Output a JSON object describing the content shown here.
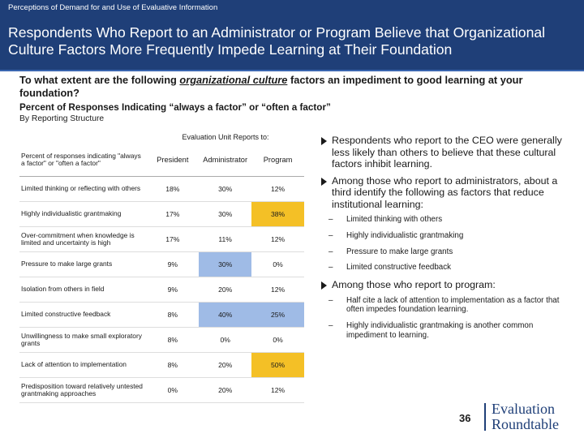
{
  "header": {
    "kicker": "Perceptions of Demand for and Use of Evaluative Information",
    "title": "Respondents Who Report to an Administrator or Program Believe that Organizational Culture Factors More Frequently Impede Learning at Their Foundation"
  },
  "question": {
    "pre": "To what extent are the following ",
    "emph": "organizational culture",
    "post": " factors an impediment to good learning at your foundation?"
  },
  "subtitle": "Percent of Responses Indicating “always a factor” or “often a factor”",
  "subtitle2": "By Reporting Structure",
  "table": {
    "group_header": "Evaluation Unit Reports to:",
    "row_header": "Percent of responses indicating \"always a factor\" or \"often a factor\"",
    "columns": [
      "President",
      "Administrator",
      "Program"
    ],
    "rows": [
      {
        "label": "Limited thinking or reflecting with others",
        "values": [
          "18%",
          "30%",
          "12%"
        ]
      },
      {
        "label": "Highly individualistic grantmaking",
        "values": [
          "17%",
          "30%",
          "38%"
        ]
      },
      {
        "label": "Over-commitment when knowledge is limited and uncertainty is high",
        "values": [
          "17%",
          "11%",
          "12%"
        ]
      },
      {
        "label": "Pressure to make large grants",
        "values": [
          "9%",
          "30%",
          "0%"
        ]
      },
      {
        "label": "Isolation from others in field",
        "values": [
          "9%",
          "20%",
          "12%"
        ]
      },
      {
        "label": "Limited constructive feedback",
        "values": [
          "8%",
          "40%",
          "25%"
        ]
      },
      {
        "label": "Unwillingness to make small exploratory grants",
        "values": [
          "8%",
          "0%",
          "0%"
        ]
      },
      {
        "label": "Lack of attention to implementation",
        "values": [
          "8%",
          "20%",
          "50%"
        ]
      },
      {
        "label": "Predisposition toward relatively untested grantmaking approaches",
        "values": [
          "0%",
          "20%",
          "12%"
        ]
      }
    ]
  },
  "bullets": {
    "b1": "Respondents who report to the CEO were generally less likely than others to believe that these cultural factors inhibit learning.",
    "b2": "Among those who report to administrators, about a third identify the following as factors that reduce institutional learning:",
    "b2_items": [
      "Limited thinking with others",
      "Highly individualistic grantmaking",
      "Pressure to make large grants",
      "Limited constructive feedback"
    ],
    "b3": "Among those who report to program:",
    "b3_items": [
      "Half cite a lack of attention to implementation as a factor that often impedes foundation learning.",
      "Highly individualistic grantmaking is another common impediment to learning."
    ]
  },
  "footer": {
    "page_number": "36",
    "logo_line1": "Evaluation",
    "logo_line2": "Roundtable"
  },
  "colors": {
    "header_bg": "#1f3f78",
    "highlight_blue": "#9fbbe6",
    "highlight_yellow": "#f4c026"
  }
}
